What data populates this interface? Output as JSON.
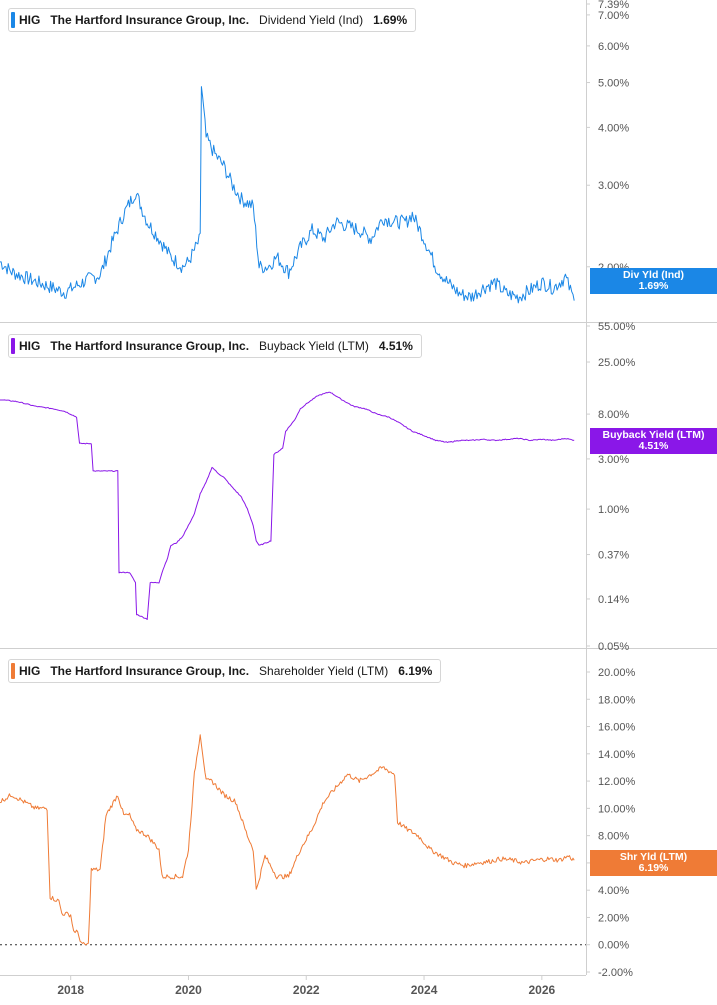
{
  "chart_data": [
    {
      "type": "line",
      "ticker": "HIG",
      "company": "The Hartford Insurance Group, Inc.",
      "metric": "Dividend Yield (Ind)",
      "current_value": "1.69%",
      "tag_label": "Div Yld (Ind)",
      "color": "#1b87e6",
      "scale": "log",
      "ylim": [
        1.55,
        7.39
      ],
      "y_ticks": [
        "7.39%",
        "7.00%",
        "6.00%",
        "5.00%",
        "4.00%",
        "3.00%",
        "2.00%"
      ],
      "series": [
        {
          "x": [
            2016.8,
            2017.0,
            2017.3,
            2017.6,
            2017.9,
            2018.1,
            2018.3,
            2018.5,
            2018.7,
            2018.9,
            2019.1,
            2019.3,
            2019.5,
            2019.7,
            2019.9,
            2020.0,
            2020.2,
            2020.22,
            2020.3,
            2020.45,
            2020.6,
            2020.75,
            2020.9,
            2021.1,
            2021.2,
            2021.35,
            2021.5,
            2021.7,
            2021.9,
            2022.1,
            2022.3,
            2022.5,
            2022.7,
            2022.9,
            2023.1,
            2023.3,
            2023.5,
            2023.7,
            2023.8,
            2024.0,
            2024.2,
            2024.4,
            2024.6,
            2024.8,
            2025.0,
            2025.2,
            2025.4,
            2025.6,
            2025.8,
            2026.0,
            2026.2,
            2026.4,
            2026.55
          ],
          "y": [
            2.05,
            1.95,
            1.88,
            1.82,
            1.76,
            1.82,
            1.88,
            1.92,
            2.25,
            2.6,
            2.9,
            2.5,
            2.3,
            2.1,
            2.0,
            2.05,
            2.3,
            4.9,
            3.8,
            3.5,
            3.3,
            3.0,
            2.8,
            2.7,
            2.0,
            2.0,
            2.1,
            1.95,
            2.2,
            2.4,
            2.3,
            2.5,
            2.45,
            2.4,
            2.3,
            2.55,
            2.5,
            2.5,
            2.6,
            2.3,
            2.0,
            1.85,
            1.75,
            1.72,
            1.8,
            1.85,
            1.75,
            1.72,
            1.78,
            1.85,
            1.8,
            1.9,
            1.69
          ]
        }
      ]
    },
    {
      "type": "line",
      "ticker": "HIG",
      "company": "The Hartford Insurance Group, Inc.",
      "metric": "Buyback Yield (LTM)",
      "current_value": "4.51%",
      "tag_label": "Buyback Yield (LTM)",
      "color": "#8a17e8",
      "scale": "log",
      "ylim": [
        0.05,
        55.0
      ],
      "y_ticks": [
        "55.00%",
        "25.00%",
        "8.00%",
        "3.00%",
        "1.00%",
        "0.37%",
        "0.14%",
        "0.05%"
      ],
      "series": [
        {
          "x": [
            2016.8,
            2017.1,
            2017.4,
            2017.7,
            2017.9,
            2018.1,
            2018.15,
            2018.35,
            2018.38,
            2018.7,
            2018.8,
            2018.82,
            2019.0,
            2019.1,
            2019.12,
            2019.3,
            2019.35,
            2019.5,
            2019.55,
            2019.65,
            2019.7,
            2019.8,
            2019.9,
            2020.0,
            2020.1,
            2020.2,
            2020.3,
            2020.4,
            2020.5,
            2020.6,
            2020.75,
            2020.9,
            2021.0,
            2021.1,
            2021.15,
            2021.2,
            2021.4,
            2021.45,
            2021.6,
            2021.65,
            2021.8,
            2021.9,
            2022.0,
            2022.2,
            2022.4,
            2022.6,
            2022.8,
            2023.0,
            2023.2,
            2023.4,
            2023.6,
            2023.8,
            2024.0,
            2024.2,
            2024.4,
            2024.6,
            2024.8,
            2025.0,
            2025.2,
            2025.4,
            2025.6,
            2025.8,
            2026.0,
            2026.2,
            2026.4,
            2026.55
          ],
          "y": [
            11.0,
            10.5,
            9.5,
            9.0,
            8.5,
            7.5,
            4.2,
            4.2,
            2.3,
            2.3,
            2.3,
            0.25,
            0.25,
            0.2,
            0.1,
            0.09,
            0.2,
            0.2,
            0.25,
            0.35,
            0.45,
            0.48,
            0.55,
            0.7,
            0.9,
            1.4,
            1.8,
            2.5,
            2.2,
            2.0,
            1.6,
            1.3,
            1.0,
            0.7,
            0.5,
            0.45,
            0.5,
            3.3,
            3.8,
            5.5,
            7.0,
            9.0,
            10.0,
            12.0,
            13.0,
            11.0,
            9.5,
            9.0,
            8.0,
            7.5,
            6.5,
            5.5,
            5.0,
            4.5,
            4.3,
            4.5,
            4.5,
            4.6,
            4.5,
            4.6,
            4.7,
            4.5,
            4.6,
            4.5,
            4.7,
            4.51
          ]
        }
      ]
    },
    {
      "type": "line",
      "ticker": "HIG",
      "company": "The Hartford Insurance Group, Inc.",
      "metric": "Shareholder Yield (LTM)",
      "current_value": "6.19%",
      "tag_label": "Shr Yld (LTM)",
      "color": "#ef7b36",
      "scale": "linear",
      "ylim": [
        -2.0,
        20.0
      ],
      "y_ticks": [
        "20.00%",
        "18.00%",
        "16.00%",
        "14.00%",
        "12.00%",
        "10.00%",
        "8.00%",
        "6.00%",
        "4.00%",
        "2.00%",
        "0.00%",
        "-2.00%"
      ],
      "zero_line": true,
      "series": [
        {
          "x": [
            2016.8,
            2017.0,
            2017.2,
            2017.4,
            2017.5,
            2017.6,
            2017.65,
            2017.8,
            2017.85,
            2018.0,
            2018.05,
            2018.1,
            2018.2,
            2018.3,
            2018.35,
            2018.5,
            2018.6,
            2018.8,
            2018.9,
            2019.0,
            2019.1,
            2019.3,
            2019.5,
            2019.55,
            2019.7,
            2019.9,
            2020.0,
            2020.1,
            2020.2,
            2020.3,
            2020.4,
            2020.6,
            2020.8,
            2021.0,
            2021.1,
            2021.15,
            2021.3,
            2021.5,
            2021.7,
            2021.9,
            2022.1,
            2022.3,
            2022.5,
            2022.7,
            2022.9,
            2023.1,
            2023.3,
            2023.5,
            2023.55,
            2023.7,
            2023.9,
            2024.1,
            2024.3,
            2024.5,
            2024.7,
            2024.9,
            2025.1,
            2025.3,
            2025.5,
            2025.7,
            2025.9,
            2026.1,
            2026.3,
            2026.45,
            2026.55
          ],
          "y": [
            10.5,
            11.0,
            10.5,
            10.0,
            10.0,
            10.0,
            3.5,
            3.2,
            2.3,
            2.2,
            1.0,
            1.0,
            0.0,
            0.0,
            5.5,
            5.5,
            9.5,
            11.0,
            9.5,
            9.5,
            8.5,
            8.0,
            7.0,
            5.0,
            5.0,
            5.0,
            7.0,
            12.5,
            15.5,
            12.0,
            12.0,
            11.0,
            10.5,
            8.0,
            7.0,
            4.0,
            6.5,
            5.0,
            5.0,
            7.0,
            8.5,
            10.5,
            11.5,
            12.5,
            12.0,
            12.5,
            13.0,
            12.5,
            9.0,
            8.5,
            8.0,
            7.0,
            6.5,
            6.0,
            5.8,
            6.0,
            6.1,
            6.3,
            6.2,
            6.0,
            6.2,
            6.3,
            6.2,
            6.5,
            6.19
          ]
        }
      ]
    }
  ],
  "x_axis": {
    "ticks": [
      "2018",
      "2020",
      "2022",
      "2024",
      "2026"
    ]
  }
}
